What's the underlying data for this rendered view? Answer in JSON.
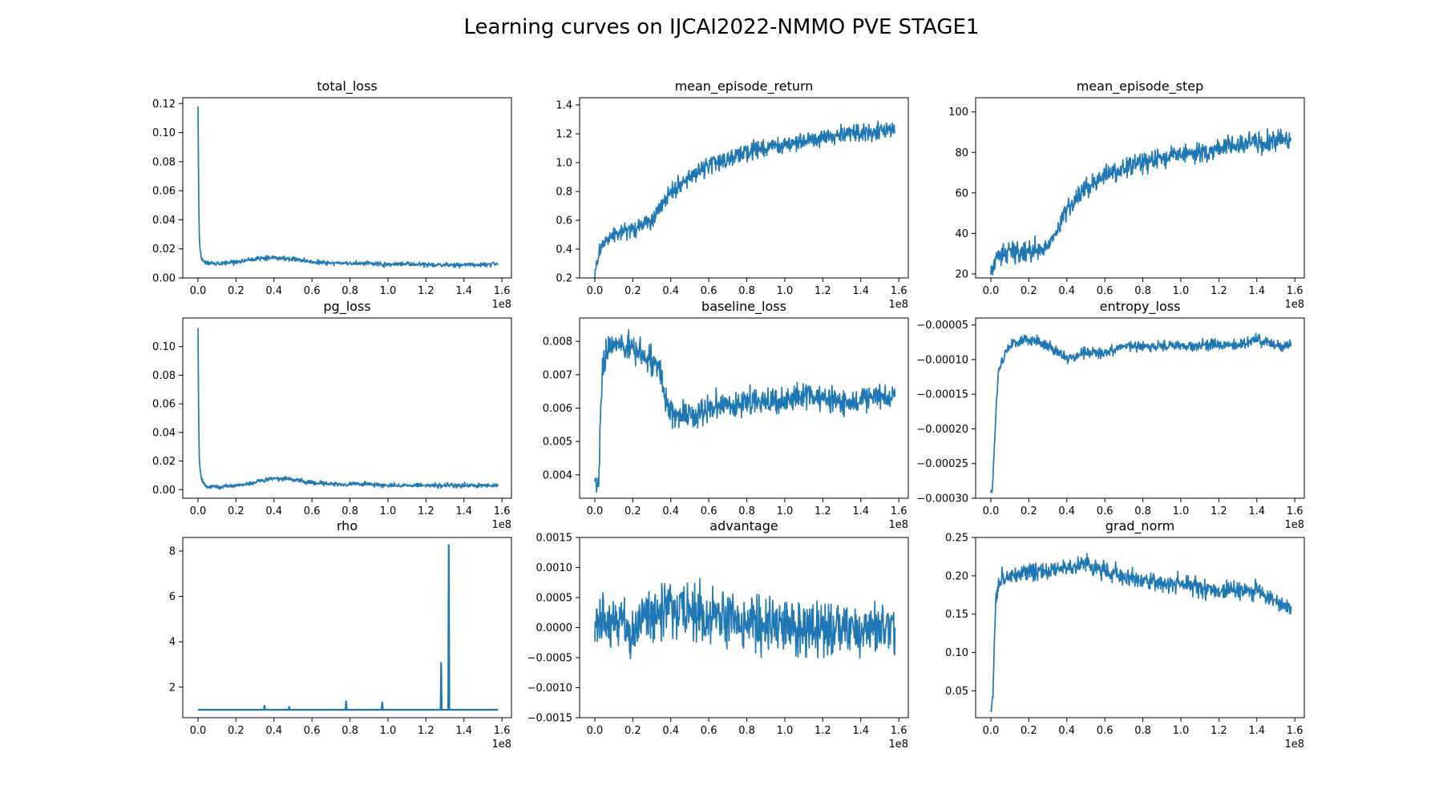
{
  "figure": {
    "title": "Learning curves on IJCAI2022-NMMO PVE STAGE1",
    "line_color": "#1f77b4"
  },
  "chart_data": [
    {
      "name": "total_loss",
      "type": "line",
      "title": "total_loss",
      "x_offset_text": "1e8",
      "xlim": [
        -0.08,
        1.65
      ],
      "ylim": [
        0.0,
        0.124
      ],
      "xticks": [
        0.0,
        0.2,
        0.4,
        0.6,
        0.8,
        1.0,
        1.2,
        1.4,
        1.6
      ],
      "xtick_labels": [
        "0.0",
        "0.2",
        "0.4",
        "0.6",
        "0.8",
        "1.0",
        "1.2",
        "1.4",
        "1.6"
      ],
      "yticks": [
        0.0,
        0.02,
        0.04,
        0.06,
        0.08,
        0.1,
        0.12
      ],
      "ytick_labels": [
        "0.00",
        "0.02",
        "0.04",
        "0.06",
        "0.08",
        "0.10",
        "0.12"
      ],
      "x": [
        0.0,
        0.003,
        0.006,
        0.01,
        0.015,
        0.02,
        0.03,
        0.05,
        0.08,
        0.12,
        0.2,
        0.3,
        0.4,
        0.5,
        0.6,
        0.7,
        0.8,
        0.9,
        1.0,
        1.1,
        1.2,
        1.3,
        1.4,
        1.5,
        1.58
      ],
      "y": [
        0.118,
        0.07,
        0.03,
        0.02,
        0.016,
        0.013,
        0.011,
        0.01,
        0.01,
        0.01,
        0.011,
        0.013,
        0.014,
        0.013,
        0.011,
        0.01,
        0.01,
        0.01,
        0.009,
        0.01,
        0.009,
        0.009,
        0.009,
        0.009,
        0.01
      ],
      "noise": 0.0015
    },
    {
      "name": "mean_episode_return",
      "type": "line",
      "title": "mean_episode_return",
      "x_offset_text": "1e8",
      "xlim": [
        -0.08,
        1.65
      ],
      "ylim": [
        0.2,
        1.45
      ],
      "xticks": [
        0.0,
        0.2,
        0.4,
        0.6,
        0.8,
        1.0,
        1.2,
        1.4,
        1.6
      ],
      "xtick_labels": [
        "0.0",
        "0.2",
        "0.4",
        "0.6",
        "0.8",
        "1.0",
        "1.2",
        "1.4",
        "1.6"
      ],
      "yticks": [
        0.2,
        0.4,
        0.6,
        0.8,
        1.0,
        1.2,
        1.4
      ],
      "ytick_labels": [
        "0.2",
        "0.4",
        "0.6",
        "0.8",
        "1.0",
        "1.2",
        "1.4"
      ],
      "x": [
        0.0,
        0.02,
        0.05,
        0.1,
        0.2,
        0.3,
        0.35,
        0.4,
        0.5,
        0.6,
        0.7,
        0.8,
        0.9,
        1.0,
        1.1,
        1.2,
        1.3,
        1.4,
        1.5,
        1.58
      ],
      "y": [
        0.26,
        0.35,
        0.45,
        0.5,
        0.55,
        0.6,
        0.7,
        0.8,
        0.9,
        0.98,
        1.03,
        1.07,
        1.1,
        1.12,
        1.15,
        1.17,
        1.19,
        1.2,
        1.22,
        1.22
      ],
      "noise": 0.06
    },
    {
      "name": "mean_episode_step",
      "type": "line",
      "title": "mean_episode_step",
      "x_offset_text": "1e8",
      "xlim": [
        -0.08,
        1.65
      ],
      "ylim": [
        18,
        107
      ],
      "xticks": [
        0.0,
        0.2,
        0.4,
        0.6,
        0.8,
        1.0,
        1.2,
        1.4,
        1.6
      ],
      "xtick_labels": [
        "0.0",
        "0.2",
        "0.4",
        "0.6",
        "0.8",
        "1.0",
        "1.2",
        "1.4",
        "1.6"
      ],
      "yticks": [
        20,
        40,
        60,
        80,
        100
      ],
      "ytick_labels": [
        "20",
        "40",
        "60",
        "80",
        "100"
      ],
      "x": [
        0.0,
        0.02,
        0.05,
        0.1,
        0.2,
        0.3,
        0.35,
        0.4,
        0.5,
        0.6,
        0.7,
        0.8,
        0.9,
        1.0,
        1.1,
        1.2,
        1.3,
        1.4,
        1.5,
        1.58
      ],
      "y": [
        22,
        26,
        29,
        30,
        31,
        34,
        42,
        52,
        62,
        68,
        72,
        75,
        77,
        79,
        80,
        82,
        83,
        85,
        86,
        87
      ],
      "noise": 5
    },
    {
      "name": "pg_loss",
      "type": "line",
      "title": "pg_loss",
      "x_offset_text": "1e8",
      "xlim": [
        -0.08,
        1.65
      ],
      "ylim": [
        -0.006,
        0.12
      ],
      "xticks": [
        0.0,
        0.2,
        0.4,
        0.6,
        0.8,
        1.0,
        1.2,
        1.4,
        1.6
      ],
      "xtick_labels": [
        "0.0",
        "0.2",
        "0.4",
        "0.6",
        "0.8",
        "1.0",
        "1.2",
        "1.4",
        "1.6"
      ],
      "yticks": [
        0.0,
        0.02,
        0.04,
        0.06,
        0.08,
        0.1
      ],
      "ytick_labels": [
        "0.00",
        "0.02",
        "0.04",
        "0.06",
        "0.08",
        "0.10"
      ],
      "x": [
        0.0,
        0.003,
        0.006,
        0.01,
        0.015,
        0.02,
        0.03,
        0.05,
        0.08,
        0.12,
        0.2,
        0.3,
        0.4,
        0.5,
        0.6,
        0.7,
        0.8,
        0.9,
        1.0,
        1.1,
        1.2,
        1.3,
        1.4,
        1.5,
        1.58
      ],
      "y": [
        0.114,
        0.06,
        0.025,
        0.015,
        0.01,
        0.007,
        0.004,
        0.002,
        0.002,
        0.002,
        0.003,
        0.005,
        0.008,
        0.007,
        0.005,
        0.004,
        0.004,
        0.004,
        0.003,
        0.003,
        0.003,
        0.003,
        0.003,
        0.003,
        0.003
      ],
      "noise": 0.0015
    },
    {
      "name": "baseline_loss",
      "type": "line",
      "title": "baseline_loss",
      "x_offset_text": "1e8",
      "xlim": [
        -0.08,
        1.65
      ],
      "ylim": [
        0.0033,
        0.0087
      ],
      "xticks": [
        0.0,
        0.2,
        0.4,
        0.6,
        0.8,
        1.0,
        1.2,
        1.4,
        1.6
      ],
      "xtick_labels": [
        "0.0",
        "0.2",
        "0.4",
        "0.6",
        "0.8",
        "1.0",
        "1.2",
        "1.4",
        "1.6"
      ],
      "yticks": [
        0.004,
        0.005,
        0.006,
        0.007,
        0.008
      ],
      "ytick_labels": [
        "0.004",
        "0.005",
        "0.006",
        "0.007",
        "0.008"
      ],
      "x": [
        0.0,
        0.01,
        0.02,
        0.04,
        0.07,
        0.1,
        0.2,
        0.3,
        0.34,
        0.37,
        0.4,
        0.5,
        0.6,
        0.7,
        0.8,
        0.9,
        1.0,
        1.1,
        1.2,
        1.3,
        1.4,
        1.5,
        1.58
      ],
      "y": [
        0.0038,
        0.0035,
        0.004,
        0.0072,
        0.0078,
        0.0079,
        0.0078,
        0.0074,
        0.0072,
        0.0062,
        0.0059,
        0.0058,
        0.006,
        0.0061,
        0.0062,
        0.0062,
        0.0062,
        0.0063,
        0.0063,
        0.0062,
        0.0063,
        0.0063,
        0.0064
      ],
      "noise": 0.0004
    },
    {
      "name": "entropy_loss",
      "type": "line",
      "title": "entropy_loss",
      "x_offset_text": "1e8",
      "xlim": [
        -0.08,
        1.65
      ],
      "ylim": [
        -0.0003,
        -4e-05
      ],
      "xticks": [
        0.0,
        0.2,
        0.4,
        0.6,
        0.8,
        1.0,
        1.2,
        1.4,
        1.6
      ],
      "xtick_labels": [
        "0.0",
        "0.2",
        "0.4",
        "0.6",
        "0.8",
        "1.0",
        "1.2",
        "1.4",
        "1.6"
      ],
      "yticks": [
        -0.0003,
        -0.00025,
        -0.0002,
        -0.00015,
        -0.0001,
        -5e-05
      ],
      "ytick_labels": [
        "−0.00030",
        "−0.00025",
        "−0.00020",
        "−0.00015",
        "−0.00010",
        "−0.00005"
      ],
      "x": [
        0.0,
        0.01,
        0.02,
        0.03,
        0.04,
        0.06,
        0.1,
        0.2,
        0.3,
        0.4,
        0.5,
        0.6,
        0.7,
        0.8,
        0.9,
        1.0,
        1.1,
        1.2,
        1.3,
        1.4,
        1.5,
        1.58
      ],
      "y": [
        -0.00029,
        -0.00028,
        -0.00022,
        -0.00016,
        -0.00012,
        -0.0001,
        -8e-05,
        -7e-05,
        -8e-05,
        -0.0001,
        -9e-05,
        -9e-05,
        -8e-05,
        -8e-05,
        -8e-05,
        -8e-05,
        -8e-05,
        -8e-05,
        -8e-05,
        -7e-05,
        -8e-05,
        -8e-05
      ],
      "noise": 8e-06
    },
    {
      "name": "rho",
      "type": "line",
      "title": "rho",
      "x_offset_text": "1e8",
      "xlim": [
        -0.08,
        1.65
      ],
      "ylim": [
        0.65,
        8.6
      ],
      "xticks": [
        0.0,
        0.2,
        0.4,
        0.6,
        0.8,
        1.0,
        1.2,
        1.4,
        1.6
      ],
      "xtick_labels": [
        "0.0",
        "0.2",
        "0.4",
        "0.6",
        "0.8",
        "1.0",
        "1.2",
        "1.4",
        "1.6"
      ],
      "yticks": [
        2,
        4,
        6,
        8
      ],
      "ytick_labels": [
        "2",
        "4",
        "6",
        "8"
      ],
      "x": [
        0.0,
        1.58
      ],
      "y": [
        1.0,
        1.0
      ],
      "spikes": [
        {
          "x": 0.35,
          "y": 1.2
        },
        {
          "x": 0.48,
          "y": 1.15
        },
        {
          "x": 0.78,
          "y": 1.4
        },
        {
          "x": 0.97,
          "y": 1.35
        },
        {
          "x": 1.28,
          "y": 3.1
        },
        {
          "x": 1.32,
          "y": 8.3
        }
      ],
      "noise": 0.0
    },
    {
      "name": "advantage",
      "type": "line",
      "title": "advantage",
      "x_offset_text": "1e8",
      "xlim": [
        -0.08,
        1.65
      ],
      "ylim": [
        -0.0015,
        0.0015
      ],
      "xticks": [
        0.0,
        0.2,
        0.4,
        0.6,
        0.8,
        1.0,
        1.2,
        1.4,
        1.6
      ],
      "xtick_labels": [
        "0.0",
        "0.2",
        "0.4",
        "0.6",
        "0.8",
        "1.0",
        "1.2",
        "1.4",
        "1.6"
      ],
      "yticks": [
        -0.0015,
        -0.001,
        -0.0005,
        0.0,
        0.0005,
        0.001,
        0.0015
      ],
      "ytick_labels": [
        "−0.0015",
        "−0.0010",
        "−0.0005",
        "0.0000",
        "0.0005",
        "0.0010",
        "0.0015"
      ],
      "x": [
        0.0,
        0.2,
        0.3,
        0.4,
        0.6,
        0.8,
        1.0,
        1.2,
        1.4,
        1.58
      ],
      "y": [
        0.0001,
        0.0,
        0.0002,
        0.0003,
        0.0002,
        0.0001,
        0.0,
        0.0,
        0.0,
        0.0
      ],
      "noise": 0.00045
    },
    {
      "name": "grad_norm",
      "type": "line",
      "title": "grad_norm",
      "x_offset_text": "1e8",
      "xlim": [
        -0.08,
        1.65
      ],
      "ylim": [
        0.015,
        0.25
      ],
      "xticks": [
        0.0,
        0.2,
        0.4,
        0.6,
        0.8,
        1.0,
        1.2,
        1.4,
        1.6
      ],
      "xtick_labels": [
        "0.0",
        "0.2",
        "0.4",
        "0.6",
        "0.8",
        "1.0",
        "1.2",
        "1.4",
        "1.6"
      ],
      "yticks": [
        0.05,
        0.1,
        0.15,
        0.2,
        0.25
      ],
      "ytick_labels": [
        "0.05",
        "0.10",
        "0.15",
        "0.20",
        "0.25"
      ],
      "x": [
        0.0,
        0.01,
        0.02,
        0.03,
        0.05,
        0.1,
        0.2,
        0.3,
        0.4,
        0.5,
        0.6,
        0.7,
        0.8,
        0.9,
        1.0,
        1.1,
        1.2,
        1.3,
        1.4,
        1.5,
        1.58
      ],
      "y": [
        0.025,
        0.04,
        0.12,
        0.18,
        0.195,
        0.2,
        0.205,
        0.205,
        0.21,
        0.215,
        0.205,
        0.2,
        0.195,
        0.19,
        0.19,
        0.185,
        0.18,
        0.18,
        0.18,
        0.165,
        0.16
      ],
      "noise": 0.012
    }
  ]
}
